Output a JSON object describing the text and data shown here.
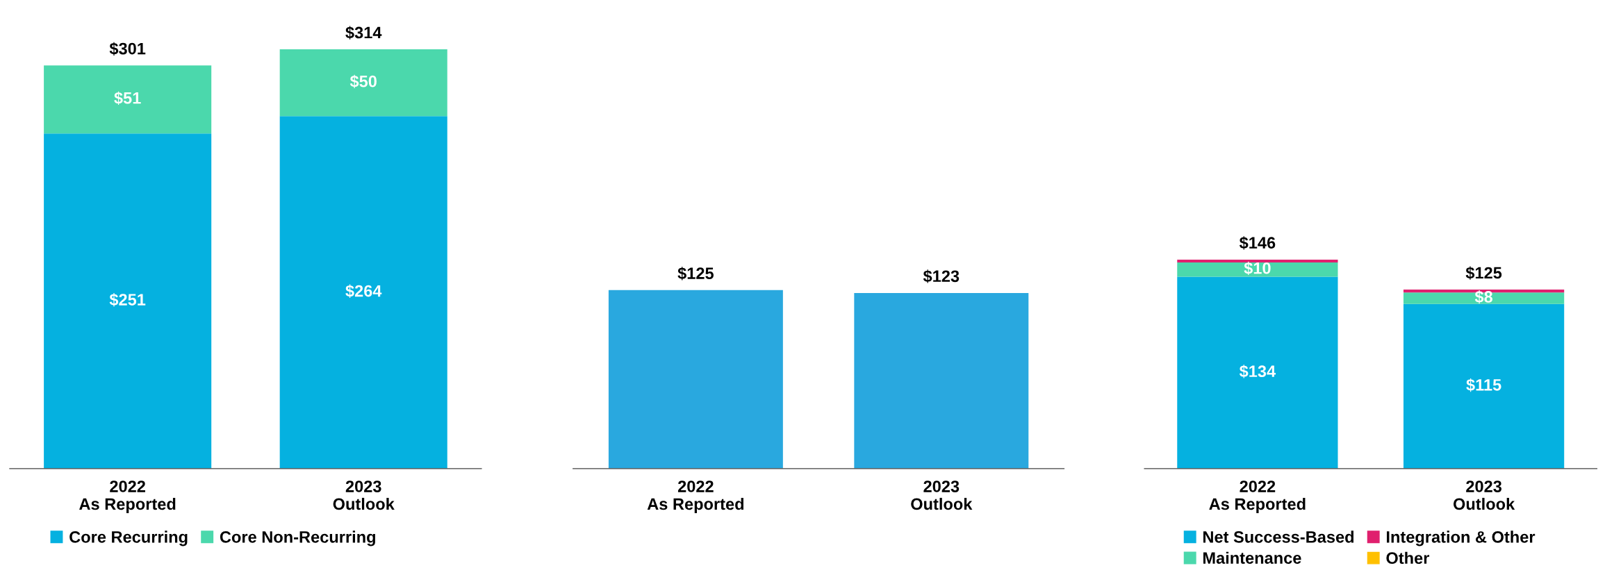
{
  "chart_data": [
    {
      "type": "bar",
      "stacked": true,
      "categories": [
        "2022\nAs Reported",
        "2023\nOutlook"
      ],
      "tick_labels": "x",
      "grid": false,
      "legend": "bottom",
      "totals": [
        "$301",
        "$314"
      ],
      "series": [
        {
          "name": "Core Recurring",
          "color": "#05b1e0",
          "values": [
            251,
            264
          ],
          "value_labels": [
            "$251",
            "$264"
          ]
        },
        {
          "name": "Core Non-Recurring",
          "color": "#4bd8ac",
          "values": [
            51,
            50
          ],
          "value_labels": [
            "$51",
            "$50"
          ]
        }
      ]
    },
    {
      "type": "bar",
      "categories": [
        "2022\nAs Reported",
        "2023\nOutlook"
      ],
      "tick_labels": "x",
      "grid": false,
      "legend": false,
      "color": "#29a8df",
      "values": [
        125,
        123
      ],
      "value_labels": [
        "$125",
        "$123"
      ]
    },
    {
      "type": "bar",
      "stacked": true,
      "categories": [
        "2022\nAs Reported",
        "2023\nOutlook"
      ],
      "tick_labels": "x",
      "grid": false,
      "legend": "bottom",
      "totals": [
        "$146",
        "$125"
      ],
      "series": [
        {
          "name": "Net Success-Based",
          "color": "#05b1e0",
          "values": [
            134,
            115
          ],
          "value_labels": [
            "$134",
            "$115"
          ]
        },
        {
          "name": "Maintenance",
          "color": "#4bd8ac",
          "values": [
            10,
            8
          ],
          "value_labels": [
            "$10",
            "$8"
          ]
        },
        {
          "name": "Integration & Other",
          "color": "#e0206e",
          "values": [
            2,
            2
          ],
          "value_labels": [
            null,
            null
          ]
        },
        {
          "name": "Other",
          "color": "#ffc000",
          "values": [
            null,
            null
          ],
          "value_labels": [
            null,
            null
          ]
        }
      ]
    }
  ]
}
